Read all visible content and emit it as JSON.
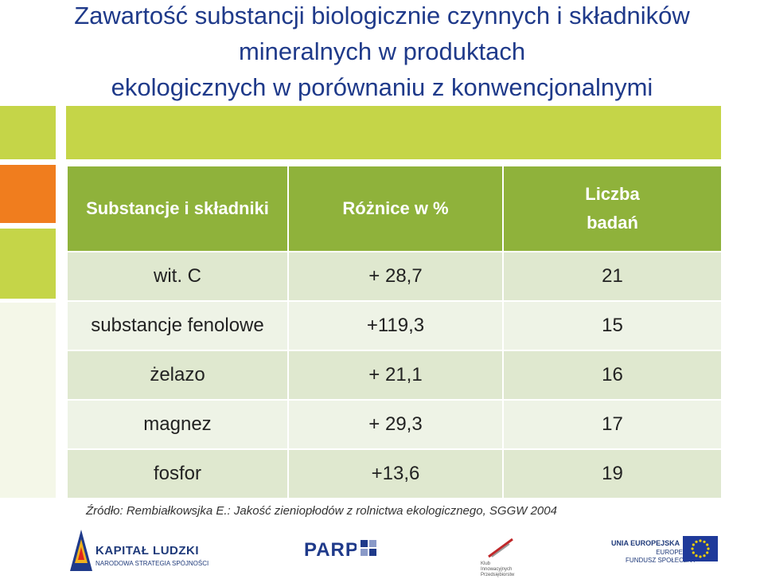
{
  "title": {
    "line1": "Zawartość substancji biologicznie czynnych i składników",
    "line2": "mineralnych w produktach",
    "line3": "ekologicznych w porównaniu z konwencjonalnymi"
  },
  "table": {
    "headers": {
      "col1": "Substancje i składniki",
      "col2": "Różnice w %",
      "col3_line1": "Liczba",
      "col3_line2": "badań"
    },
    "rows": [
      {
        "name": "wit. C",
        "diff": "+ 28,7",
        "count": "21"
      },
      {
        "name": "substancje fenolowe",
        "diff": "+119,3",
        "count": "15"
      },
      {
        "name": "żelazo",
        "diff": "+ 21,1",
        "count": "16"
      },
      {
        "name": "magnez",
        "diff": "+ 29,3",
        "count": "17"
      },
      {
        "name": "fosfor",
        "diff": "+13,6",
        "count": "19"
      }
    ]
  },
  "source": "Źródło: Rembiałkowsjka E.: Jakość zieniopłodów z rolnictwa ekologicznego, SGGW 2004",
  "logos": {
    "kapital": {
      "name": "KAPITAŁ LUDZKI",
      "subtitle": "NARODOWA STRATEGIA SPÓJNOŚCI"
    },
    "parp": {
      "name": "PARP"
    },
    "klub": {
      "text": "Klub Innowacyjnych Przedsiębiorstw"
    },
    "ue": {
      "line1": "UNIA EUROPEJSKA",
      "line2": "EUROPEJSKI",
      "line3": "FUNDUSZ SPOŁECZNY"
    }
  },
  "colors": {
    "title": "#1f3a8a",
    "band": "#c5d548",
    "header": "#8fb23b",
    "orange": "#f07d1e"
  }
}
